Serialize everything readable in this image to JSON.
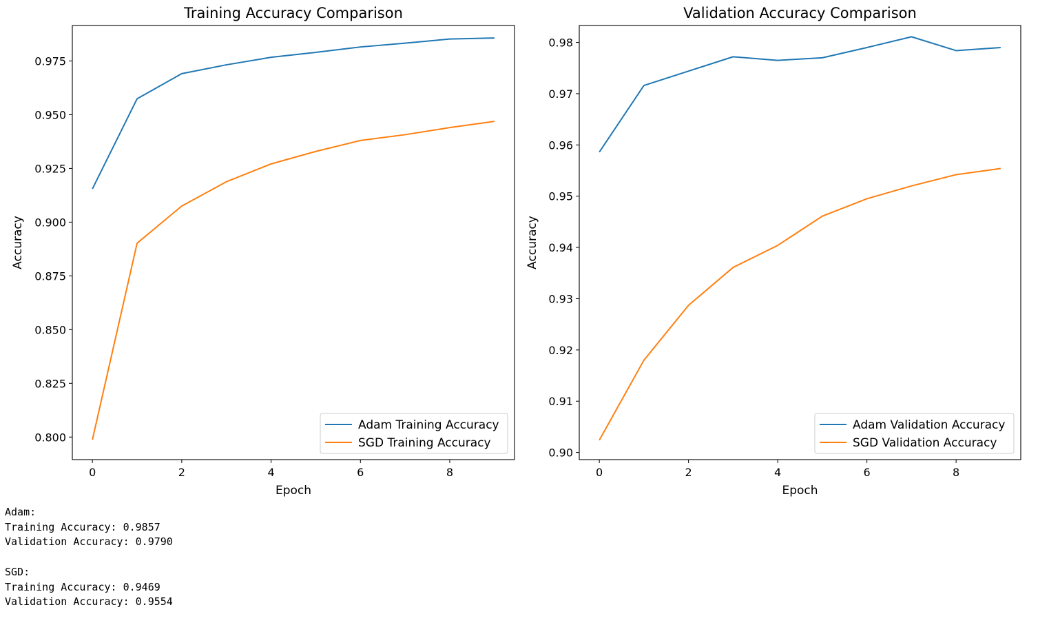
{
  "colors": {
    "series_1": "#1f77b4",
    "series_2": "#ff7f0e"
  },
  "chart_data": [
    {
      "type": "line",
      "title": "Training Accuracy Comparison",
      "xlabel": "Epoch",
      "ylabel": "Accuracy",
      "x": [
        0,
        1,
        2,
        3,
        4,
        5,
        6,
        7,
        8,
        9
      ],
      "xlim": [
        -0.45,
        9.45
      ],
      "ylim": [
        0.7895,
        0.9915
      ],
      "xticks": [
        0,
        2,
        4,
        6,
        8
      ],
      "xtick_labels": [
        "0",
        "2",
        "4",
        "6",
        "8"
      ],
      "yticks": [
        0.8,
        0.825,
        0.85,
        0.875,
        0.9,
        0.925,
        0.95,
        0.975
      ],
      "ytick_labels": [
        "0.800",
        "0.825",
        "0.850",
        "0.875",
        "0.900",
        "0.925",
        "0.950",
        "0.975"
      ],
      "grid": false,
      "legend_position": "lower-right",
      "series": [
        {
          "name": "Adam Training Accuracy",
          "values": [
            0.9155,
            0.9574,
            0.9691,
            0.9732,
            0.9767,
            0.979,
            0.9815,
            0.9833,
            0.9852,
            0.9857
          ]
        },
        {
          "name": "SGD Training Accuracy",
          "values": [
            0.7988,
            0.8902,
            0.9075,
            0.9188,
            0.9271,
            0.9329,
            0.938,
            0.9407,
            0.944,
            0.9469
          ]
        }
      ]
    },
    {
      "type": "line",
      "title": "Validation Accuracy Comparison",
      "xlabel": "Epoch",
      "ylabel": "Accuracy",
      "x": [
        0,
        1,
        2,
        3,
        4,
        5,
        6,
        7,
        8,
        9
      ],
      "xlim": [
        -0.45,
        9.45
      ],
      "ylim": [
        0.8986,
        0.9833
      ],
      "xticks": [
        0,
        2,
        4,
        6,
        8
      ],
      "xtick_labels": [
        "0",
        "2",
        "4",
        "6",
        "8"
      ],
      "yticks": [
        0.9,
        0.91,
        0.92,
        0.93,
        0.94,
        0.95,
        0.96,
        0.97,
        0.98
      ],
      "ytick_labels": [
        "0.90",
        "0.91",
        "0.92",
        "0.93",
        "0.94",
        "0.95",
        "0.96",
        "0.97",
        "0.98"
      ],
      "grid": false,
      "legend_position": "lower-right",
      "series": [
        {
          "name": "Adam Validation Accuracy",
          "values": [
            0.9586,
            0.9716,
            0.9744,
            0.9772,
            0.9765,
            0.977,
            0.979,
            0.9811,
            0.9784,
            0.979
          ]
        },
        {
          "name": "SGD Validation Accuracy",
          "values": [
            0.9024,
            0.918,
            0.9287,
            0.9361,
            0.9404,
            0.9461,
            0.9495,
            0.952,
            0.9542,
            0.9554
          ]
        }
      ]
    }
  ],
  "console": {
    "lines": [
      "Adam:",
      "Training Accuracy: 0.9857",
      "Validation Accuracy: 0.9790",
      "",
      "SGD:",
      "Training Accuracy: 0.9469",
      "Validation Accuracy: 0.9554"
    ]
  }
}
